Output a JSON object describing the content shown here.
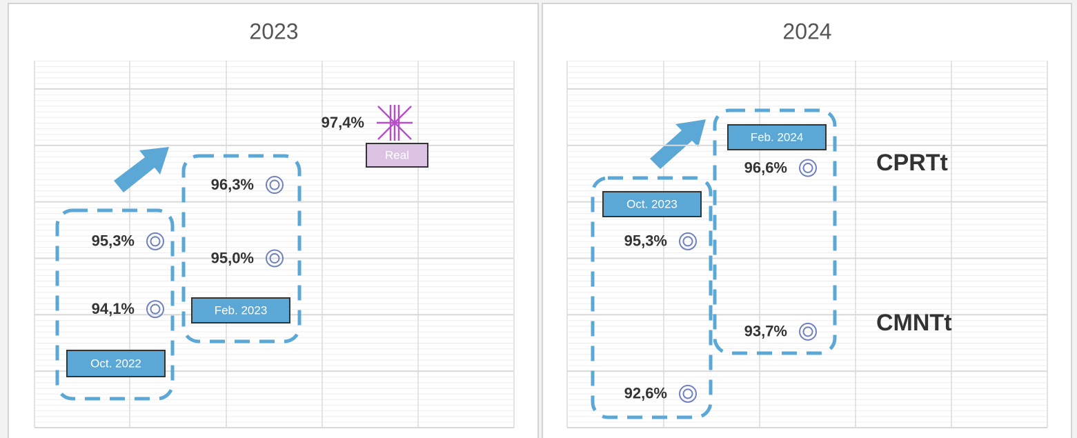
{
  "chart_data": [
    {
      "type": "scatter",
      "title": "2023",
      "ylim": [
        92,
        98.5
      ],
      "yticks": [
        92,
        93,
        94,
        95,
        96,
        97,
        98
      ],
      "grid": true,
      "series": [
        {
          "name": "Oct. 2022",
          "color": "#5ba8d6",
          "marker": "circle",
          "marker_color": "#6f80bf",
          "values": [
            95.3,
            94.1
          ],
          "value_labels": [
            "95,3%",
            "94,1%"
          ]
        },
        {
          "name": "Feb. 2023",
          "color": "#5ba8d6",
          "marker": "circle",
          "marker_color": "#6f80bf",
          "values": [
            96.3,
            95.0
          ],
          "value_labels": [
            "96,3%",
            "95,0%"
          ]
        },
        {
          "name": "Real",
          "color": "#dcc3e3",
          "marker": "star",
          "marker_color": "#b44fc9",
          "values": [
            97.4
          ],
          "value_labels": [
            "97,4%"
          ]
        }
      ]
    },
    {
      "type": "scatter",
      "title": "2024",
      "ylim": [
        92,
        98.5
      ],
      "yticks": [
        92,
        93,
        94,
        95,
        96,
        97,
        98
      ],
      "grid": true,
      "series": [
        {
          "name": "Oct. 2023",
          "color": "#5ba8d6",
          "marker": "circle",
          "marker_color": "#6f80bf",
          "values": [
            95.3,
            92.6
          ],
          "value_labels": [
            "95,3%",
            "92,6%"
          ]
        },
        {
          "name": "Feb. 2024",
          "color": "#5ba8d6",
          "marker": "circle",
          "marker_color": "#6f80bf",
          "values": [
            96.6,
            93.7
          ],
          "value_labels": [
            "96,6%",
            "93,7%"
          ]
        }
      ],
      "annotations": [
        "CPRTt",
        "CMNTt"
      ]
    }
  ]
}
